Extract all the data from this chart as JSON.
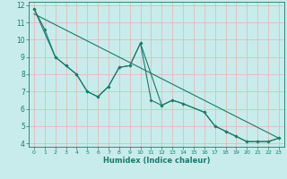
{
  "xlabel": "Humidex (Indice chaleur)",
  "bg_color": "#c8ecec",
  "grid_color": "#e8b8b8",
  "line_color": "#1a7a6a",
  "xlim": [
    -0.5,
    23.5
  ],
  "ylim": [
    3.8,
    12.2
  ],
  "yticks": [
    4,
    5,
    6,
    7,
    8,
    9,
    10,
    11,
    12
  ],
  "xticks": [
    0,
    1,
    2,
    3,
    4,
    5,
    6,
    7,
    8,
    9,
    10,
    11,
    12,
    13,
    14,
    15,
    16,
    17,
    18,
    19,
    20,
    21,
    22,
    23
  ],
  "line1_x": [
    0,
    1,
    2,
    3,
    4,
    5,
    6,
    7,
    8,
    9,
    10,
    11,
    12,
    13,
    14,
    16,
    17,
    18,
    19,
    20,
    21,
    22,
    23
  ],
  "line1_y": [
    11.8,
    10.6,
    9.0,
    8.5,
    8.0,
    7.0,
    6.7,
    7.3,
    8.4,
    8.5,
    9.8,
    6.5,
    6.2,
    6.5,
    6.3,
    5.8,
    5.0,
    4.7,
    4.4,
    4.1,
    4.1,
    4.1,
    4.3
  ],
  "line2_x": [
    0,
    2,
    3,
    4,
    5,
    6,
    7,
    8,
    9,
    10,
    12,
    13,
    14,
    16,
    17,
    18,
    19,
    20,
    21,
    22,
    23
  ],
  "line2_y": [
    11.8,
    9.0,
    8.5,
    8.0,
    7.0,
    6.7,
    7.3,
    8.4,
    8.5,
    9.8,
    6.2,
    6.5,
    6.3,
    5.8,
    5.0,
    4.7,
    4.4,
    4.1,
    4.1,
    4.1,
    4.3
  ],
  "trend_x": [
    0,
    23
  ],
  "trend_y": [
    11.5,
    4.3
  ]
}
